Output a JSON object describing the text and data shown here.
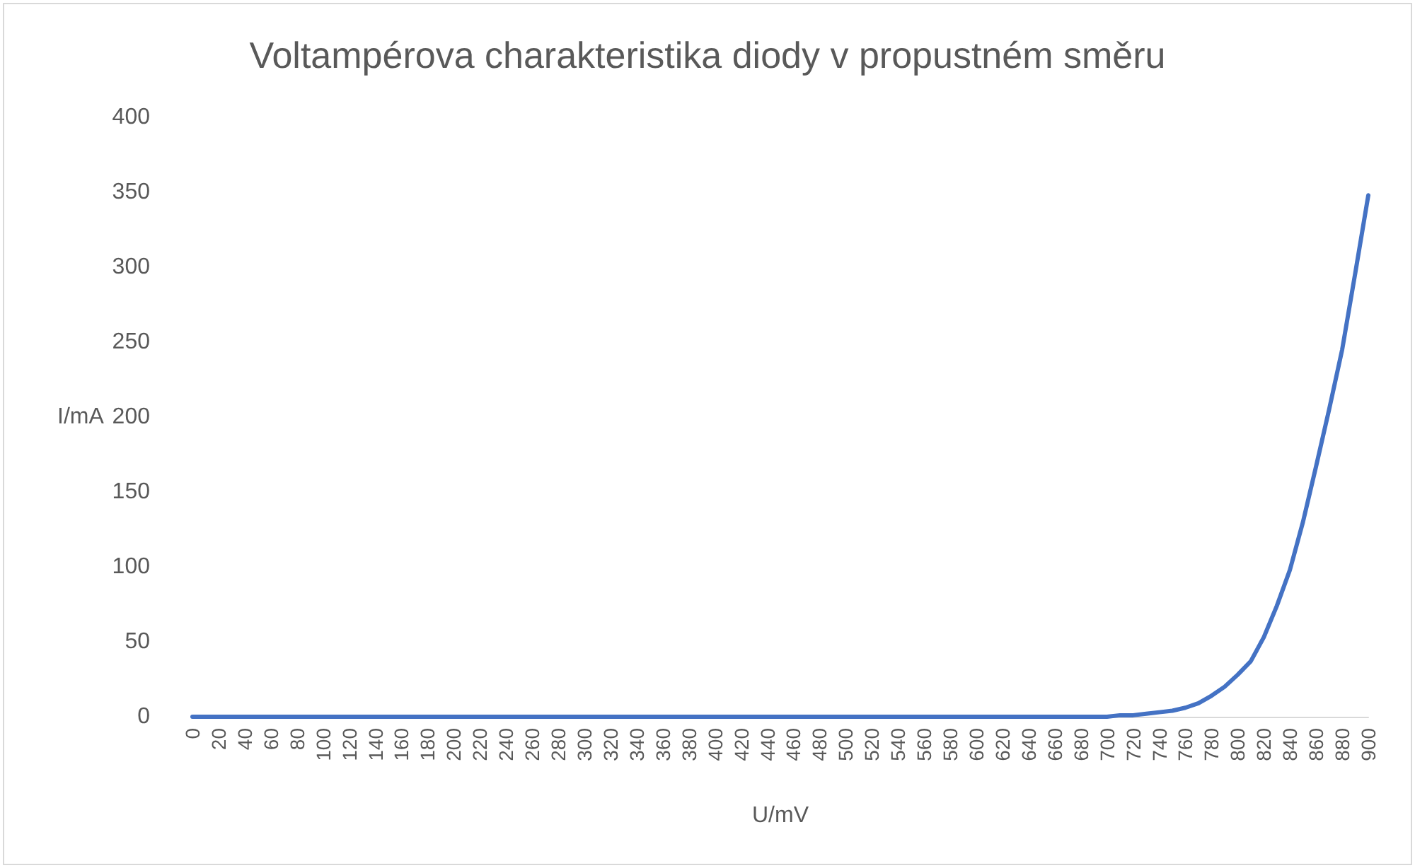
{
  "chart_data": {
    "type": "line",
    "title": "Voltampérova charakteristika diody v propustném směru",
    "xlabel": "U/mV",
    "ylabel": "I/mA",
    "x": [
      0,
      10,
      20,
      30,
      40,
      50,
      60,
      70,
      80,
      90,
      100,
      110,
      120,
      130,
      140,
      150,
      160,
      170,
      180,
      190,
      200,
      210,
      220,
      230,
      240,
      250,
      260,
      270,
      280,
      290,
      300,
      310,
      320,
      330,
      340,
      350,
      360,
      370,
      380,
      390,
      400,
      410,
      420,
      430,
      440,
      450,
      460,
      470,
      480,
      490,
      500,
      510,
      520,
      530,
      540,
      550,
      560,
      570,
      580,
      590,
      600,
      610,
      620,
      630,
      640,
      650,
      660,
      670,
      680,
      690,
      700,
      710,
      720,
      730,
      740,
      750,
      760,
      770,
      780,
      790,
      800,
      810,
      820,
      830,
      840,
      850,
      860,
      870,
      880,
      890,
      900
    ],
    "series": [
      {
        "color": "#4472c4",
        "values": [
          0,
          0,
          0,
          0,
          0,
          0,
          0,
          0,
          0,
          0,
          0,
          0,
          0,
          0,
          0,
          0,
          0,
          0,
          0,
          0,
          0,
          0,
          0,
          0,
          0,
          0,
          0,
          0,
          0,
          0,
          0,
          0,
          0,
          0,
          0,
          0,
          0,
          0,
          0,
          0,
          0,
          0,
          0,
          0,
          0,
          0,
          0,
          0,
          0,
          0,
          0,
          0,
          0,
          0,
          0,
          0,
          0,
          0,
          0,
          0,
          0,
          0,
          0,
          0,
          0,
          0,
          0,
          0,
          0,
          0,
          0,
          1,
          1,
          2,
          3,
          4,
          6,
          9,
          14,
          20,
          28,
          37,
          53,
          74,
          98,
          130,
          167,
          205,
          245,
          296,
          348
        ]
      }
    ],
    "xlim": [
      0,
      900
    ],
    "xticks": [
      0,
      20,
      40,
      60,
      80,
      100,
      120,
      140,
      160,
      180,
      200,
      220,
      240,
      260,
      280,
      300,
      320,
      340,
      360,
      380,
      400,
      420,
      440,
      460,
      480,
      500,
      520,
      540,
      560,
      580,
      600,
      620,
      640,
      660,
      680,
      700,
      720,
      740,
      760,
      780,
      800,
      820,
      840,
      860,
      880,
      900
    ],
    "ylim": [
      0,
      400
    ],
    "yticks": [
      0,
      50,
      100,
      150,
      200,
      250,
      300,
      350,
      400
    ],
    "grid": false,
    "marker": "none",
    "line_style": "solid"
  }
}
